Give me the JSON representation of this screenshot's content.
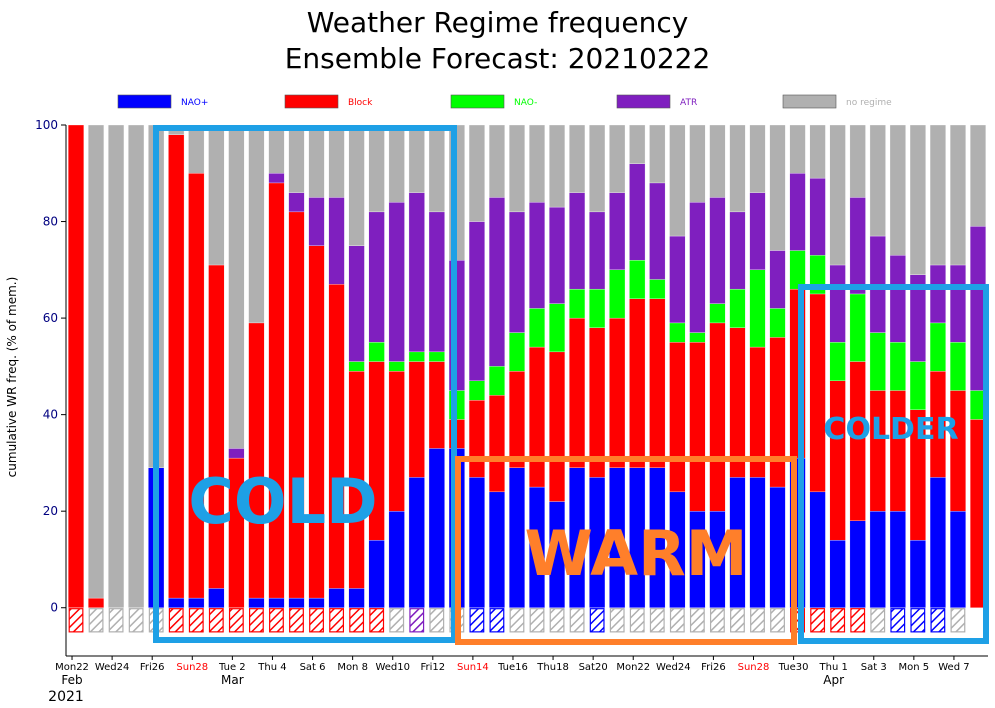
{
  "chart_data": {
    "type": "bar",
    "title": "Weather Regime frequency",
    "subtitle": "Ensemble Forecast: 20210222",
    "ylabel": "cumulative WR freq. (% of mem.)",
    "ylim": [
      -10,
      100
    ],
    "yticks": [
      0,
      20,
      40,
      60,
      80,
      100
    ],
    "legend": [
      {
        "name": "NAO+",
        "color": "#0000ff",
        "text_color": "#0000ff"
      },
      {
        "name": "Block",
        "color": "#ff0000",
        "text_color": "#ff0000"
      },
      {
        "name": "NAO-",
        "color": "#00ff00",
        "text_color": "#00ff00"
      },
      {
        "name": "ATR",
        "color": "#7f1fbf",
        "text_color": "#7f1fbf"
      },
      {
        "name": "no regime",
        "color": "#b0b0b0",
        "text_color": "#b0b0b0"
      }
    ],
    "x_ticks": [
      {
        "label": "Mon22",
        "weekend": false
      },
      {
        "label": "Wed24",
        "weekend": false
      },
      {
        "label": "Fri26",
        "weekend": false
      },
      {
        "label": "Sun28",
        "weekend": true
      },
      {
        "label": "Tue 2",
        "weekend": false
      },
      {
        "label": "Thu 4",
        "weekend": false
      },
      {
        "label": "Sat 6",
        "weekend": false
      },
      {
        "label": "Mon 8",
        "weekend": false
      },
      {
        "label": "Wed10",
        "weekend": false
      },
      {
        "label": "Fri12",
        "weekend": false
      },
      {
        "label": "Sun14",
        "weekend": true
      },
      {
        "label": "Tue16",
        "weekend": false
      },
      {
        "label": "Thu18",
        "weekend": false
      },
      {
        "label": "Sat20",
        "weekend": false
      },
      {
        "label": "Mon22",
        "weekend": false
      },
      {
        "label": "Wed24",
        "weekend": false
      },
      {
        "label": "Fri26",
        "weekend": false
      },
      {
        "label": "Sun28",
        "weekend": true
      },
      {
        "label": "Tue30",
        "weekend": false
      },
      {
        "label": "Thu 1",
        "weekend": false
      },
      {
        "label": "Sat 3",
        "weekend": false
      },
      {
        "label": "Mon 5",
        "weekend": false
      },
      {
        "label": "Wed 7",
        "weekend": false
      }
    ],
    "month_labels": [
      "Feb",
      "Mar",
      "Apr"
    ],
    "year_label": "2021",
    "series_order": [
      "NAO+",
      "Block",
      "NAO-",
      "ATR",
      "no regime"
    ],
    "bars": [
      {
        "v": [
          0,
          100,
          0,
          0,
          0
        ],
        "dom": "Block"
      },
      {
        "v": [
          0,
          2,
          0,
          0,
          98
        ],
        "dom": "no regime"
      },
      {
        "v": [
          0,
          0,
          0,
          0,
          100
        ],
        "dom": "no regime"
      },
      {
        "v": [
          0,
          0,
          0,
          0,
          100
        ],
        "dom": "no regime"
      },
      {
        "v": [
          29,
          0,
          0,
          0,
          71
        ],
        "dom": "no regime"
      },
      {
        "v": [
          2,
          96,
          0,
          0,
          2
        ],
        "dom": "Block"
      },
      {
        "v": [
          2,
          88,
          0,
          0,
          10
        ],
        "dom": "Block"
      },
      {
        "v": [
          4,
          67,
          0,
          0,
          29
        ],
        "dom": "Block"
      },
      {
        "v": [
          0,
          31,
          0,
          2,
          67
        ],
        "dom": "Block"
      },
      {
        "v": [
          2,
          57,
          0,
          0,
          41
        ],
        "dom": "Block"
      },
      {
        "v": [
          2,
          86,
          0,
          2,
          10
        ],
        "dom": "Block"
      },
      {
        "v": [
          2,
          80,
          0,
          4,
          14
        ],
        "dom": "Block"
      },
      {
        "v": [
          2,
          73,
          0,
          10,
          15
        ],
        "dom": "Block"
      },
      {
        "v": [
          4,
          63,
          0,
          18,
          15
        ],
        "dom": "Block"
      },
      {
        "v": [
          4,
          45,
          2,
          24,
          25
        ],
        "dom": "Block"
      },
      {
        "v": [
          14,
          37,
          4,
          27,
          18
        ],
        "dom": "Block"
      },
      {
        "v": [
          20,
          29,
          2,
          33,
          16
        ],
        "dom": "no regime"
      },
      {
        "v": [
          27,
          24,
          2,
          33,
          14
        ],
        "dom": "ATR"
      },
      {
        "v": [
          33,
          18,
          2,
          29,
          18
        ],
        "dom": "no regime"
      },
      {
        "v": [
          33,
          6,
          6,
          27,
          28
        ],
        "dom": "no regime"
      },
      {
        "v": [
          27,
          16,
          4,
          33,
          20
        ],
        "dom": "NAO+"
      },
      {
        "v": [
          24,
          20,
          6,
          35,
          15
        ],
        "dom": "NAO+"
      },
      {
        "v": [
          29,
          20,
          8,
          25,
          18
        ],
        "dom": "no regime"
      },
      {
        "v": [
          25,
          29,
          8,
          22,
          16
        ],
        "dom": "no regime"
      },
      {
        "v": [
          22,
          31,
          10,
          20,
          17
        ],
        "dom": "no regime"
      },
      {
        "v": [
          29,
          31,
          6,
          20,
          14
        ],
        "dom": "no regime"
      },
      {
        "v": [
          27,
          31,
          8,
          16,
          18
        ],
        "dom": "NAO+"
      },
      {
        "v": [
          29,
          31,
          10,
          16,
          14
        ],
        "dom": "no regime"
      },
      {
        "v": [
          29,
          35,
          8,
          20,
          8
        ],
        "dom": "no regime"
      },
      {
        "v": [
          29,
          35,
          4,
          20,
          12
        ],
        "dom": "no regime"
      },
      {
        "v": [
          24,
          31,
          4,
          18,
          23
        ],
        "dom": "no regime"
      },
      {
        "v": [
          20,
          35,
          2,
          27,
          16
        ],
        "dom": "no regime"
      },
      {
        "v": [
          20,
          39,
          4,
          22,
          15
        ],
        "dom": "no regime"
      },
      {
        "v": [
          27,
          31,
          8,
          16,
          18
        ],
        "dom": "no regime"
      },
      {
        "v": [
          27,
          27,
          16,
          16,
          14
        ],
        "dom": "no regime"
      },
      {
        "v": [
          25,
          31,
          6,
          12,
          26
        ],
        "dom": "no regime"
      },
      {
        "v": [
          31,
          35,
          8,
          16,
          10
        ],
        "dom": "Block"
      },
      {
        "v": [
          24,
          41,
          8,
          16,
          11
        ],
        "dom": "Block"
      },
      {
        "v": [
          14,
          33,
          8,
          16,
          29
        ],
        "dom": "Block"
      },
      {
        "v": [
          18,
          33,
          14,
          20,
          15
        ],
        "dom": "Block"
      },
      {
        "v": [
          20,
          25,
          12,
          20,
          23
        ],
        "dom": "no regime"
      },
      {
        "v": [
          20,
          25,
          10,
          18,
          27
        ],
        "dom": "NAO+"
      },
      {
        "v": [
          14,
          27,
          10,
          18,
          31
        ],
        "dom": "NAO+"
      },
      {
        "v": [
          27,
          22,
          10,
          12,
          29
        ],
        "dom": "NAO+"
      },
      {
        "v": [
          20,
          25,
          10,
          16,
          29
        ],
        "dom": "no regime"
      },
      {
        "v": [
          0,
          39,
          6,
          34,
          21
        ],
        "dom": ""
      }
    ],
    "annotations": [
      {
        "text": "COLD",
        "color": "#1ea0e6"
      },
      {
        "text": "WARM",
        "color": "#ff7f2a"
      },
      {
        "text": "COLDER",
        "color": "#1ea0e6"
      }
    ]
  }
}
